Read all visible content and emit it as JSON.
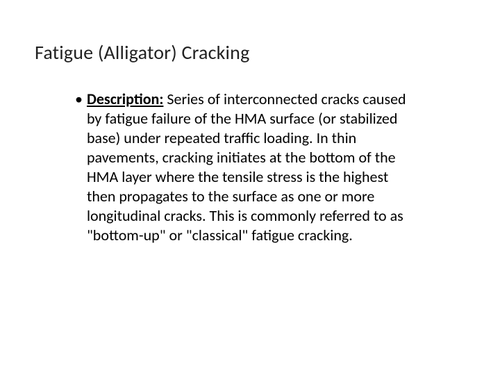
{
  "title": "Fatigue (Alligator) Cracking",
  "bullet_glyph": "•",
  "description_label": "Description:",
  "description_text": " Series of interconnected cracks caused by fatigue failure of the HMA surface (or stabilized base) under repeated traffic loading.  In thin pavements, cracking initiates at the bottom of the HMA layer where the tensile stress is the highest then propagates to the surface as one or more longitudinal cracks.  This is commonly referred to as \"bottom-up\" or \"classical\" fatigue cracking.",
  "title_fontsize": 28,
  "body_fontsize": 22,
  "line_height": 28,
  "text_color": "#000000",
  "background_color": "#ffffff"
}
